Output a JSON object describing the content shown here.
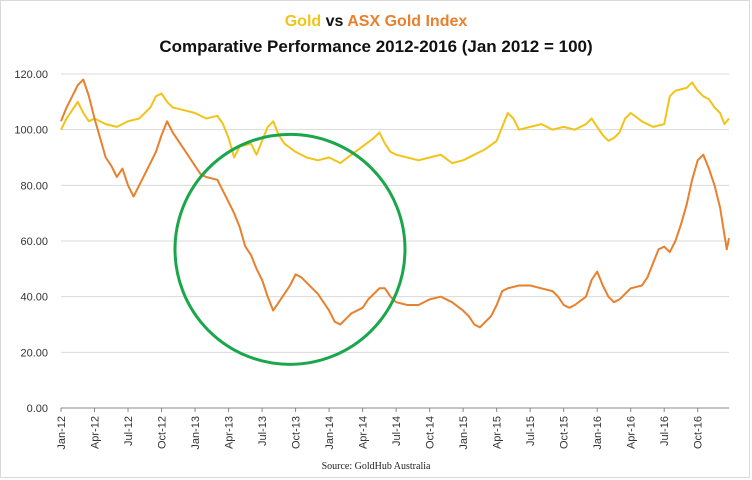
{
  "title": {
    "series_a": "Gold",
    "connector": " vs ",
    "series_b": "ASX Gold Index",
    "subtitle": "Comparative Performance 2012-2016 (Jan 2012 = 100)"
  },
  "source": "Source: GoldHub Australia",
  "colors": {
    "gold": "#f2c318",
    "asx": "#e8802e",
    "highlight_circle": "#1aa64b",
    "grid": "#d9d9d9",
    "axis": "#888888"
  },
  "chart_data": {
    "type": "line",
    "title": "Gold vs ASX Gold Index",
    "subtitle": "Comparative Performance 2012-2016 (Jan 2012 = 100)",
    "xlabel": "",
    "ylabel": "",
    "ylim": [
      0,
      120
    ],
    "yticks": [
      "0.00",
      "20.00",
      "40.00",
      "60.00",
      "80.00",
      "100.00",
      "120.00"
    ],
    "ytick_values": [
      0,
      20,
      40,
      60,
      80,
      100,
      120
    ],
    "xticks": [
      "Jan-12",
      "Apr-12",
      "Jul-12",
      "Oct-12",
      "Jan-13",
      "Apr-13",
      "Jul-13",
      "Oct-13",
      "Jan-14",
      "Apr-14",
      "Jul-14",
      "Oct-14",
      "Jan-15",
      "Apr-15",
      "Jul-15",
      "Oct-15",
      "Jan-16",
      "Apr-16",
      "Jul-16",
      "Oct-16"
    ],
    "x_range_months": [
      0,
      59.8
    ],
    "grid": "horizontal",
    "legend": "in title",
    "annotations": [
      {
        "type": "circle",
        "center_month": 20.5,
        "center_value": 57,
        "note": "highlighted divergence period"
      }
    ],
    "series": [
      {
        "name": "Gold",
        "color": "#f2c318",
        "points": [
          [
            0,
            100
          ],
          [
            0.5,
            104
          ],
          [
            1,
            107
          ],
          [
            1.5,
            110
          ],
          [
            2,
            106
          ],
          [
            2.5,
            103
          ],
          [
            3,
            104
          ],
          [
            4,
            102
          ],
          [
            5,
            101
          ],
          [
            6,
            103
          ],
          [
            7,
            104
          ],
          [
            8,
            108
          ],
          [
            8.5,
            112
          ],
          [
            9,
            113
          ],
          [
            9.5,
            110
          ],
          [
            10,
            108
          ],
          [
            11,
            107
          ],
          [
            12,
            106
          ],
          [
            13,
            104
          ],
          [
            14,
            105
          ],
          [
            14.5,
            102
          ],
          [
            15,
            97
          ],
          [
            15.5,
            90
          ],
          [
            16,
            94
          ],
          [
            17,
            95
          ],
          [
            17.5,
            91
          ],
          [
            18,
            96
          ],
          [
            18.5,
            101
          ],
          [
            19,
            103
          ],
          [
            19.5,
            98
          ],
          [
            20,
            95
          ],
          [
            21,
            92
          ],
          [
            22,
            90
          ],
          [
            23,
            89
          ],
          [
            24,
            90
          ],
          [
            25,
            88
          ],
          [
            26,
            91
          ],
          [
            27,
            94
          ],
          [
            28,
            97
          ],
          [
            28.5,
            99
          ],
          [
            29,
            95
          ],
          [
            29.5,
            92
          ],
          [
            30,
            91
          ],
          [
            31,
            90
          ],
          [
            32,
            89
          ],
          [
            33,
            90
          ],
          [
            34,
            91
          ],
          [
            35,
            88
          ],
          [
            36,
            89
          ],
          [
            37,
            91
          ],
          [
            38,
            93
          ],
          [
            39,
            96
          ],
          [
            39.5,
            101
          ],
          [
            40,
            106
          ],
          [
            40.5,
            104
          ],
          [
            41,
            100
          ],
          [
            42,
            101
          ],
          [
            43,
            102
          ],
          [
            44,
            100
          ],
          [
            45,
            101
          ],
          [
            46,
            100
          ],
          [
            47,
            102
          ],
          [
            47.5,
            104
          ],
          [
            48,
            101
          ],
          [
            48.5,
            98
          ],
          [
            49,
            96
          ],
          [
            49.5,
            97
          ],
          [
            50,
            99
          ],
          [
            50.5,
            104
          ],
          [
            51,
            106
          ],
          [
            52,
            103
          ],
          [
            53,
            101
          ],
          [
            54,
            102
          ],
          [
            54.5,
            112
          ],
          [
            55,
            114
          ],
          [
            56,
            115
          ],
          [
            56.5,
            117
          ],
          [
            57,
            114
          ],
          [
            57.5,
            112
          ],
          [
            58,
            111
          ],
          [
            58.5,
            108
          ],
          [
            59,
            106
          ],
          [
            59.4,
            102
          ],
          [
            59.8,
            104
          ]
        ]
      },
      {
        "name": "ASX Gold Index",
        "color": "#e8802e",
        "points": [
          [
            0,
            103
          ],
          [
            0.5,
            108
          ],
          [
            1,
            112
          ],
          [
            1.5,
            116
          ],
          [
            2,
            118
          ],
          [
            2.5,
            112
          ],
          [
            3,
            104
          ],
          [
            3.5,
            97
          ],
          [
            4,
            90
          ],
          [
            4.5,
            87
          ],
          [
            5,
            83
          ],
          [
            5.5,
            86
          ],
          [
            6,
            80
          ],
          [
            6.5,
            76
          ],
          [
            7,
            80
          ],
          [
            7.5,
            84
          ],
          [
            8,
            88
          ],
          [
            8.5,
            92
          ],
          [
            9,
            98
          ],
          [
            9.5,
            103
          ],
          [
            10,
            99
          ],
          [
            10.5,
            96
          ],
          [
            11,
            93
          ],
          [
            11.5,
            90
          ],
          [
            12,
            87
          ],
          [
            12.5,
            84
          ],
          [
            13,
            83
          ],
          [
            14,
            82
          ],
          [
            14.5,
            78
          ],
          [
            15,
            74
          ],
          [
            15.5,
            70
          ],
          [
            16,
            65
          ],
          [
            16.5,
            58
          ],
          [
            17,
            55
          ],
          [
            17.5,
            50
          ],
          [
            18,
            46
          ],
          [
            18.5,
            40
          ],
          [
            19,
            35
          ],
          [
            19.5,
            38
          ],
          [
            20,
            41
          ],
          [
            20.5,
            44
          ],
          [
            21,
            48
          ],
          [
            21.5,
            47
          ],
          [
            22,
            45
          ],
          [
            22.5,
            43
          ],
          [
            23,
            41
          ],
          [
            23.5,
            38
          ],
          [
            24,
            35
          ],
          [
            24.5,
            31
          ],
          [
            25,
            30
          ],
          [
            25.5,
            32
          ],
          [
            26,
            34
          ],
          [
            27,
            36
          ],
          [
            27.5,
            39
          ],
          [
            28,
            41
          ],
          [
            28.5,
            43
          ],
          [
            29,
            43
          ],
          [
            29.5,
            40
          ],
          [
            30,
            38
          ],
          [
            31,
            37
          ],
          [
            32,
            37
          ],
          [
            33,
            39
          ],
          [
            34,
            40
          ],
          [
            35,
            38
          ],
          [
            36,
            35
          ],
          [
            36.5,
            33
          ],
          [
            37,
            30
          ],
          [
            37.5,
            29
          ],
          [
            38,
            31
          ],
          [
            38.5,
            33
          ],
          [
            39,
            37
          ],
          [
            39.5,
            42
          ],
          [
            40,
            43
          ],
          [
            41,
            44
          ],
          [
            42,
            44
          ],
          [
            43,
            43
          ],
          [
            44,
            42
          ],
          [
            44.5,
            40
          ],
          [
            45,
            37
          ],
          [
            45.5,
            36
          ],
          [
            46,
            37
          ],
          [
            47,
            40
          ],
          [
            47.5,
            46
          ],
          [
            48,
            49
          ],
          [
            48.5,
            44
          ],
          [
            49,
            40
          ],
          [
            49.5,
            38
          ],
          [
            50,
            39
          ],
          [
            51,
            43
          ],
          [
            52,
            44
          ],
          [
            52.5,
            47
          ],
          [
            53,
            52
          ],
          [
            53.5,
            57
          ],
          [
            54,
            58
          ],
          [
            54.5,
            56
          ],
          [
            55,
            60
          ],
          [
            55.5,
            66
          ],
          [
            56,
            73
          ],
          [
            56.5,
            82
          ],
          [
            57,
            89
          ],
          [
            57.5,
            91
          ],
          [
            58,
            86
          ],
          [
            58.5,
            80
          ],
          [
            59,
            72
          ],
          [
            59.4,
            62
          ],
          [
            59.6,
            57
          ],
          [
            59.8,
            61
          ]
        ]
      }
    ]
  }
}
